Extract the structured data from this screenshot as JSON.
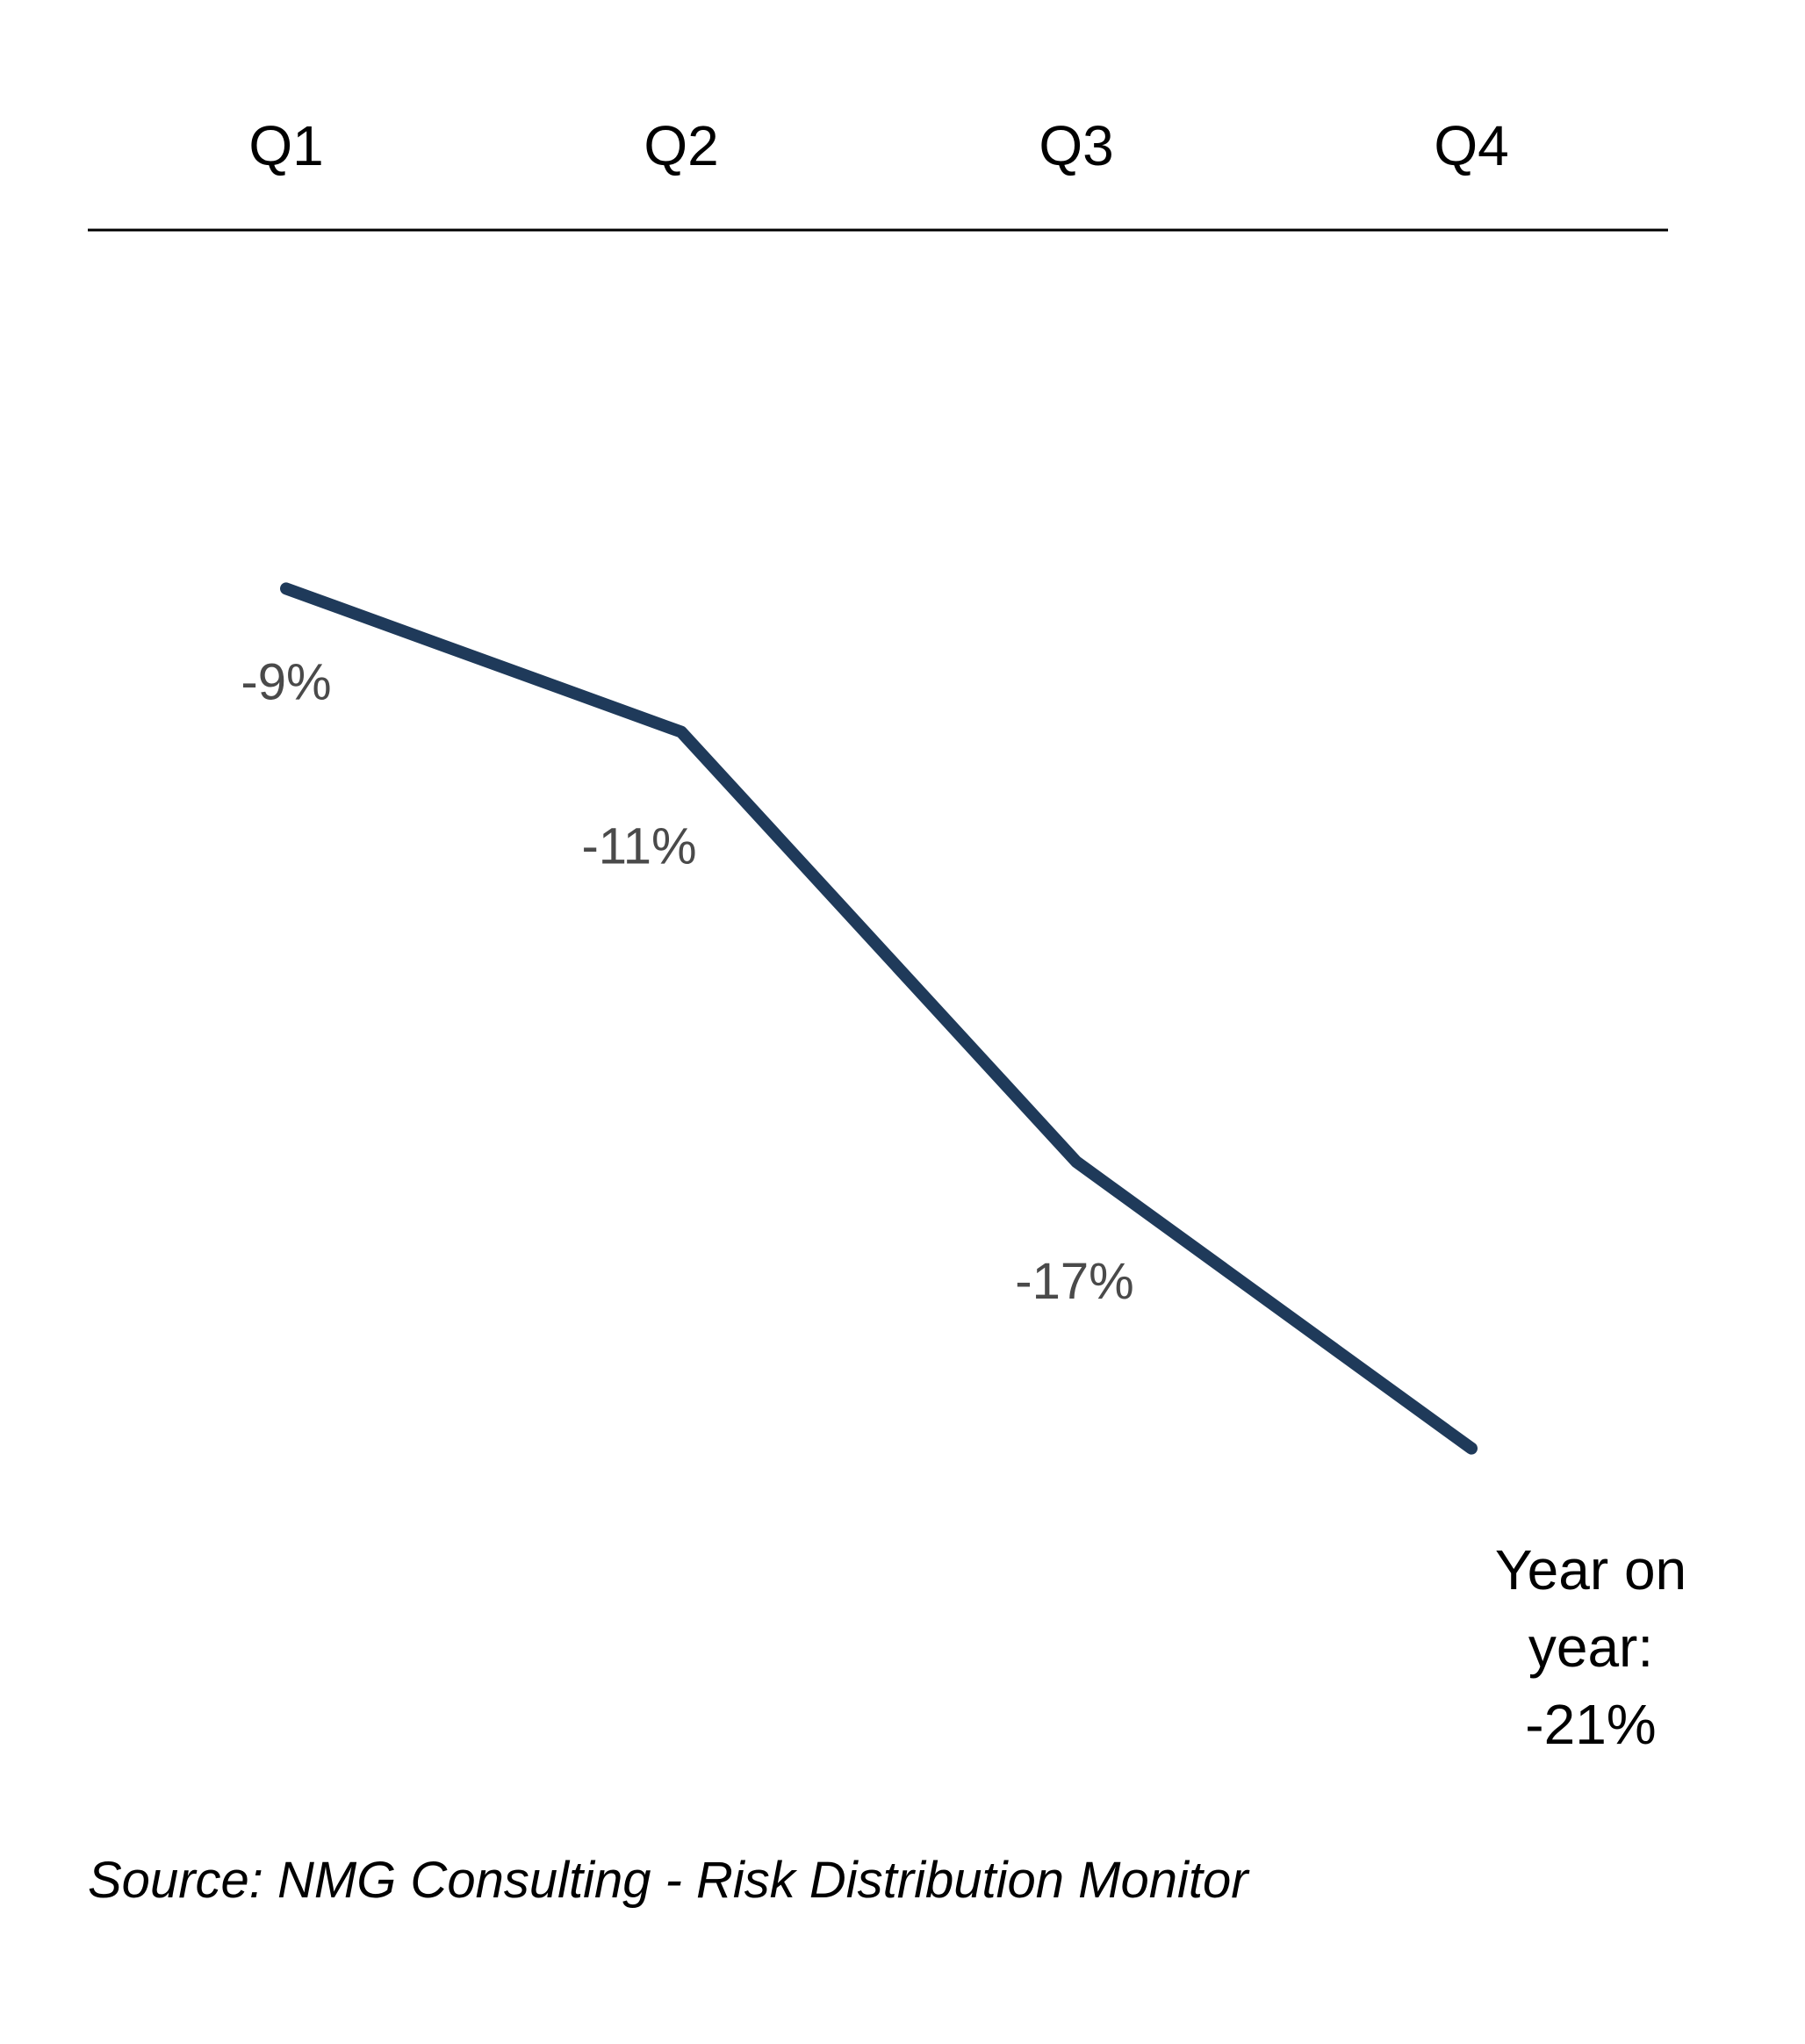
{
  "chart_data": {
    "type": "line",
    "categories": [
      "Q1",
      "Q2",
      "Q3",
      "Q4"
    ],
    "series": [
      {
        "values": [
          -9,
          -11,
          -17,
          -21
        ],
        "labels": [
          "-9%",
          "-11%",
          "-17%",
          ""
        ],
        "color": "#1f3a5a"
      }
    ],
    "end_annotation": [
      "Year on",
      "year:",
      "-21%"
    ],
    "ylim": [
      -23,
      0
    ],
    "grid": false,
    "legend": "none"
  },
  "source": "Source: NMG Consulting - Risk Distribution Monitor"
}
